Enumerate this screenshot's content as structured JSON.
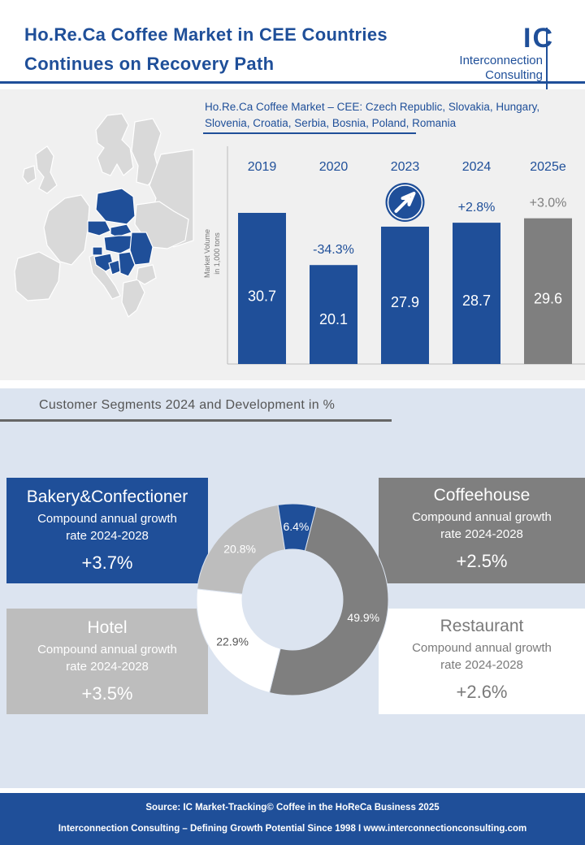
{
  "header": {
    "title_line1": "Ho.Re.Ca Coffee Market in CEE Countries",
    "title_line2": "Continues on Recovery Path",
    "logo_mark": "IC",
    "logo_line1": "Interconnection",
    "logo_line2": "Consulting"
  },
  "chart_title": {
    "line1": "Ho.Re.Ca Coffee Market – CEE: Czech Republic, Slovakia, Hungary,",
    "line2": "Slovenia, Croatia, Serbia, Bosnia, Poland, Romania"
  },
  "segments_title": "Customer Segments 2024 and Development in %",
  "segments": {
    "bakery": {
      "name": "Bakery&Confectioner",
      "sub1": "Compound annual growth",
      "sub2": "rate 2024-2028",
      "value": "+3.7%"
    },
    "coffeehouse": {
      "name": "Coffeehouse",
      "sub1": "Compound annual growth",
      "sub2": "rate 2024-2028",
      "value": "+2.5%"
    },
    "hotel": {
      "name": "Hotel",
      "sub1": "Compound annual growth",
      "sub2": "rate 2024-2028",
      "value": "+3.5%"
    },
    "restaurant": {
      "name": "Restaurant",
      "sub1": "Compound annual growth",
      "sub2": "rate 2024-2028",
      "value": "+2.6%"
    }
  },
  "footer": {
    "line1": "Source: IC Market-Tracking© Coffee in the HoReCa Business 2025",
    "line2": "Interconnection Consulting – Defining Growth Potential Since 1998 I www.interconnectionconsulting.com"
  },
  "chart_data": [
    {
      "type": "bar",
      "title": "Ho.Re.Ca Coffee Market – CEE: Czech Republic, Slovakia, Hungary, Slovenia, Croatia, Serbia, Bosnia, Poland, Romania",
      "ylabel": "Market Volume in 1,000 tons",
      "categories": [
        "2019",
        "2020",
        "2023",
        "2024",
        "2025e"
      ],
      "values": [
        30.7,
        20.1,
        27.9,
        28.7,
        29.6
      ],
      "value_labels": [
        "30.7",
        "20.1",
        "27.9",
        "28.7",
        "29.6"
      ],
      "annotations": [
        "",
        "-34.3%",
        "",
        "+2.8%",
        "+3.0%"
      ],
      "trend_icon_on": "2023",
      "ylim": [
        0,
        34
      ],
      "colors": [
        "#1f4f99",
        "#1f4f99",
        "#1f4f99",
        "#1f4f99",
        "#7f7f7f"
      ]
    },
    {
      "type": "pie",
      "labels": [
        "Coffeehouse",
        "Restaurant",
        "Hotel",
        "Bakery&Confectioner"
      ],
      "values": [
        49.9,
        22.9,
        20.8,
        6.4
      ],
      "value_labels": [
        "49.9%",
        "22.9%",
        "20.8%",
        "6.4%"
      ],
      "colors": [
        "#7f7f7f",
        "#ffffff",
        "#bdbdbd",
        "#1f4f99"
      ]
    }
  ]
}
